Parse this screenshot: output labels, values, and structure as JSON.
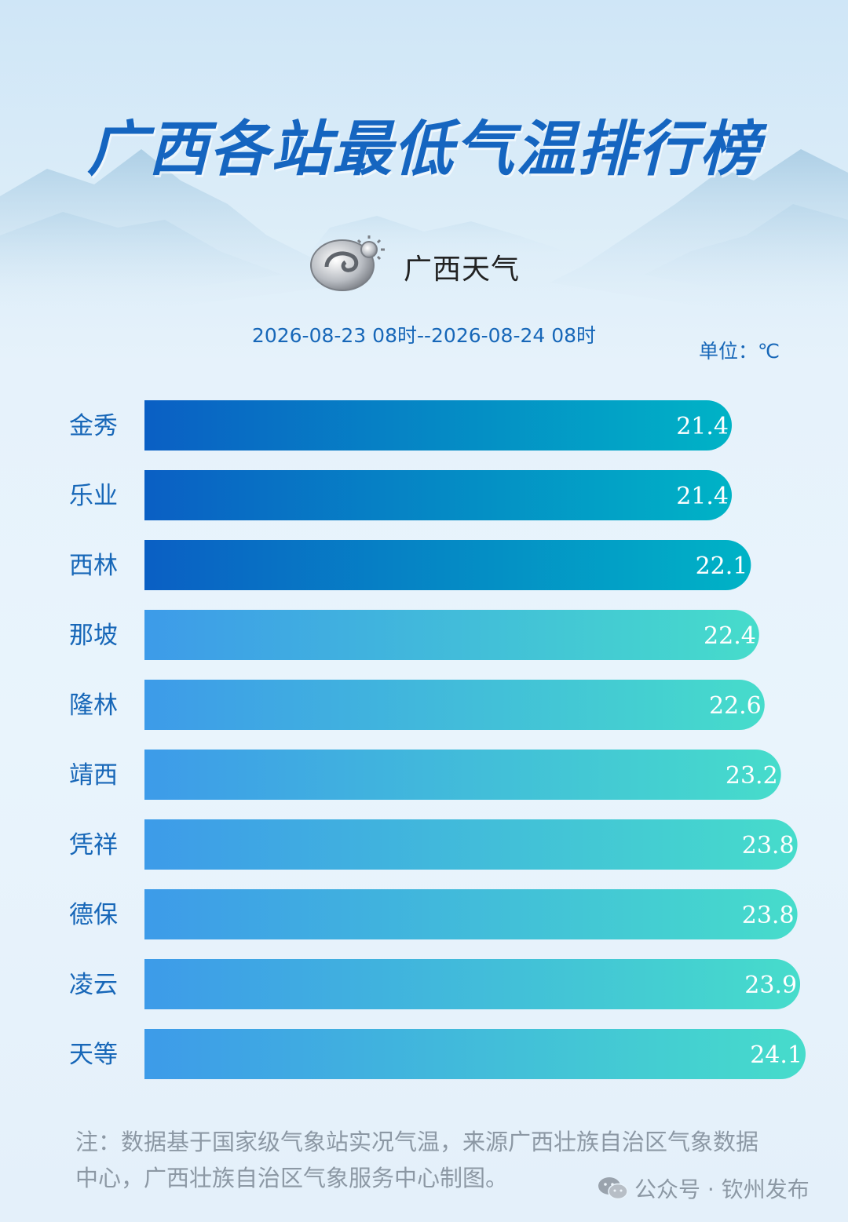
{
  "title": "广西各站最低气温排行榜",
  "logo": {
    "text": "广西天气",
    "icon": "guangxi-weather-logo"
  },
  "date_range": "2026-08-23 08时--2026-08-24 08时",
  "unit": "单位：℃",
  "note": "注：数据基于国家级气象站实况气温，来源广西壮族自治区气象数据中心，广西壮族自治区气象服务中心制图。",
  "watermark": {
    "text": "公众号 · 钦州发布",
    "icon": "wechat-icon"
  },
  "colors": {
    "title": "#1565c0",
    "dark_bar_start": "#0a5fc4",
    "dark_bar_end": "#00b3c6",
    "light_bar_start": "#3d9be9",
    "light_bar_end": "#46dccb",
    "label": "#1767b8"
  },
  "chart_data": {
    "type": "bar",
    "orientation": "horizontal",
    "categories": [
      "金秀",
      "乐业",
      "西林",
      "那坡",
      "隆林",
      "靖西",
      "凭祥",
      "德保",
      "凌云",
      "天等"
    ],
    "values": [
      21.4,
      21.4,
      22.1,
      22.4,
      22.6,
      23.2,
      23.8,
      23.8,
      23.9,
      24.1
    ],
    "highlight_top": 3,
    "title": "广西各站最低气温排行榜",
    "xlabel": "",
    "ylabel": "",
    "unit": "℃",
    "grid": false,
    "legend": "none",
    "data_labels": true
  }
}
